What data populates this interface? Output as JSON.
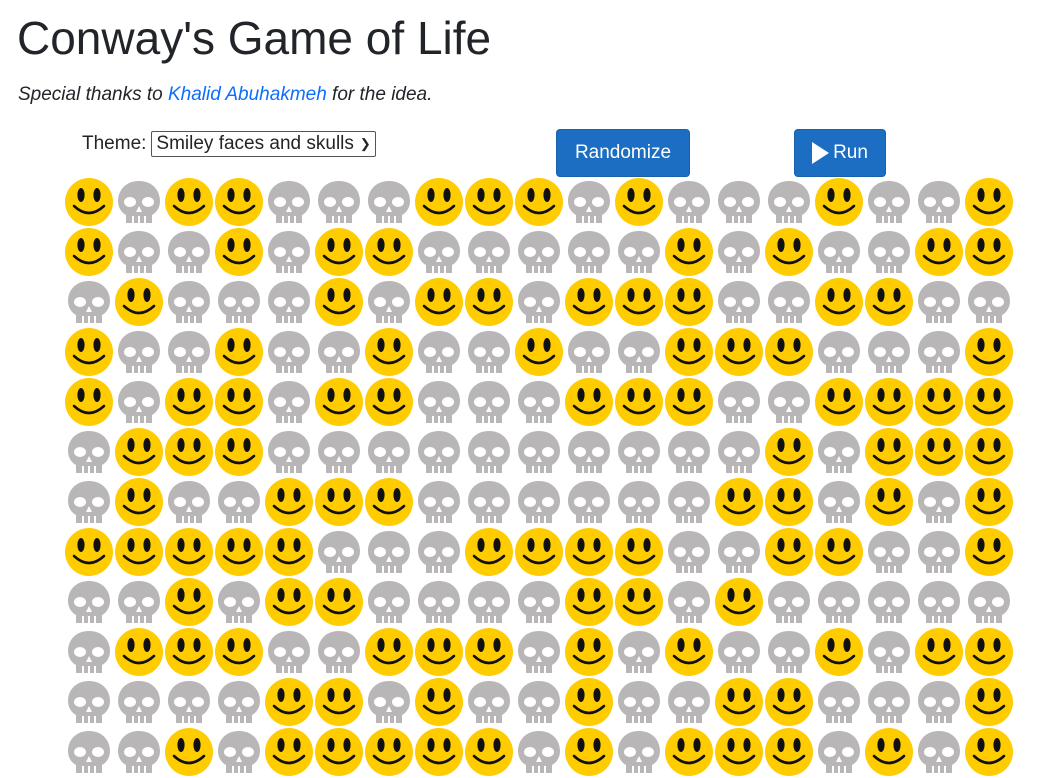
{
  "page": {
    "title": "Conway's Game of Life",
    "thanks_prefix": "Special thanks to ",
    "thanks_link": "Khalid Abuhakmeh",
    "thanks_suffix": " for the idea."
  },
  "controls": {
    "theme_label": "Theme:",
    "theme_value": "Smiley faces and skulls",
    "randomize_label": "Randomize",
    "run_label": "Run"
  },
  "grid": {
    "alive_icon": "smiley-face-icon",
    "dead_icon": "skull-icon",
    "colors": {
      "alive": "#FFCC00",
      "dead": "#B9B6B7"
    },
    "rows": [
      [
        1,
        0,
        1,
        1,
        0,
        0,
        0,
        1,
        1,
        1,
        0,
        1,
        0,
        0,
        0,
        1,
        0,
        0,
        1
      ],
      [
        1,
        0,
        0,
        1,
        0,
        1,
        1,
        0,
        0,
        0,
        0,
        0,
        1,
        0,
        1,
        0,
        0,
        1,
        1
      ],
      [
        0,
        1,
        0,
        0,
        0,
        1,
        0,
        1,
        1,
        0,
        1,
        1,
        1,
        0,
        0,
        1,
        1,
        0,
        0
      ],
      [
        1,
        0,
        0,
        1,
        0,
        0,
        1,
        0,
        0,
        1,
        0,
        0,
        1,
        1,
        1,
        0,
        0,
        0,
        1
      ],
      [
        1,
        0,
        1,
        1,
        0,
        1,
        1,
        0,
        0,
        0,
        1,
        1,
        1,
        0,
        0,
        1,
        1,
        1,
        1
      ],
      [
        0,
        1,
        1,
        1,
        0,
        0,
        0,
        0,
        0,
        0,
        0,
        0,
        0,
        0,
        1,
        0,
        1,
        1,
        1
      ],
      [
        0,
        1,
        0,
        0,
        1,
        1,
        1,
        0,
        0,
        0,
        0,
        0,
        0,
        1,
        1,
        0,
        1,
        0,
        1
      ],
      [
        1,
        1,
        1,
        1,
        1,
        0,
        0,
        0,
        1,
        1,
        1,
        1,
        0,
        0,
        1,
        1,
        0,
        0,
        1
      ],
      [
        0,
        0,
        1,
        0,
        1,
        1,
        0,
        0,
        0,
        0,
        1,
        1,
        0,
        1,
        0,
        0,
        0,
        0,
        0
      ],
      [
        0,
        1,
        1,
        1,
        0,
        0,
        1,
        1,
        1,
        0,
        1,
        0,
        1,
        0,
        0,
        1,
        0,
        1,
        1
      ],
      [
        0,
        0,
        0,
        0,
        1,
        1,
        0,
        1,
        0,
        0,
        1,
        0,
        0,
        1,
        1,
        0,
        0,
        0,
        1
      ],
      [
        0,
        0,
        1,
        0,
        1,
        1,
        1,
        1,
        1,
        0,
        1,
        0,
        1,
        1,
        1,
        0,
        1,
        0,
        1
      ]
    ]
  }
}
